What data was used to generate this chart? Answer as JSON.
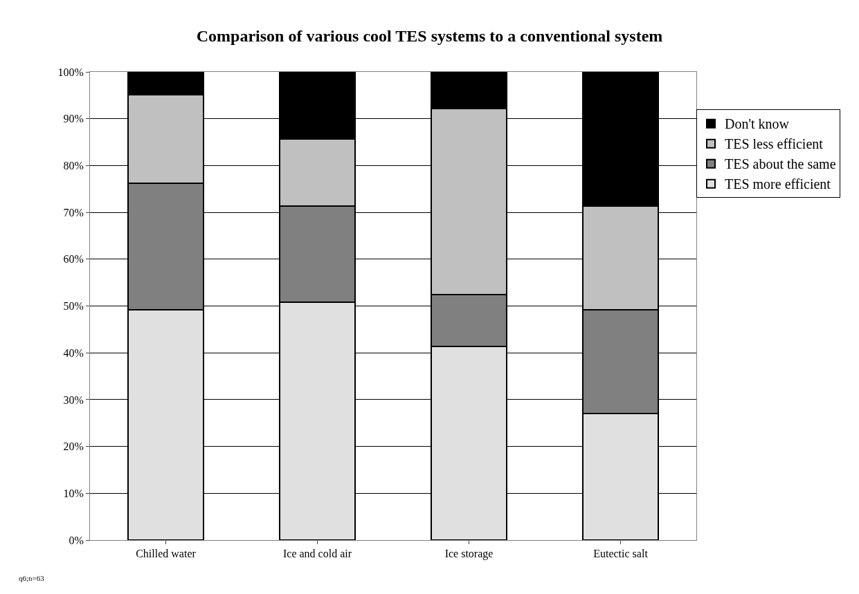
{
  "chart_data": {
    "type": "bar",
    "title": "Comparison of various cool TES systems to a conventional system",
    "categories": [
      "Chilled water",
      "Ice and cold air",
      "Ice storage",
      "Eutectic salt"
    ],
    "stacked": true,
    "series": [
      {
        "name": "TES more efficient",
        "color": "#e0e0e0",
        "values": [
          49.2,
          50.8,
          41.3,
          27.0
        ]
      },
      {
        "name": "TES about the same",
        "color": "#808080",
        "values": [
          27.0,
          20.6,
          11.1,
          22.2
        ]
      },
      {
        "name": "TES less efficient",
        "color": "#c0c0c0",
        "values": [
          19.0,
          14.3,
          39.7,
          22.2
        ]
      },
      {
        "name": "Don't know",
        "color": "#000000",
        "values": [
          4.8,
          14.3,
          7.9,
          28.6
        ]
      }
    ],
    "ylim": [
      0,
      100
    ],
    "yticks": [
      {
        "value": 0,
        "label": "0%"
      },
      {
        "value": 10,
        "label": "10%"
      },
      {
        "value": 20,
        "label": "20%"
      },
      {
        "value": 30,
        "label": "30%"
      },
      {
        "value": 40,
        "label": "40%"
      },
      {
        "value": 50,
        "label": "50%"
      },
      {
        "value": 60,
        "label": "60%"
      },
      {
        "value": 70,
        "label": "70%"
      },
      {
        "value": 80,
        "label": "80%"
      },
      {
        "value": 90,
        "label": "90%"
      },
      {
        "value": 100,
        "label": "100%"
      }
    ],
    "grid": "y",
    "legend": "top right",
    "annotations": [
      "q6;n=63"
    ]
  }
}
